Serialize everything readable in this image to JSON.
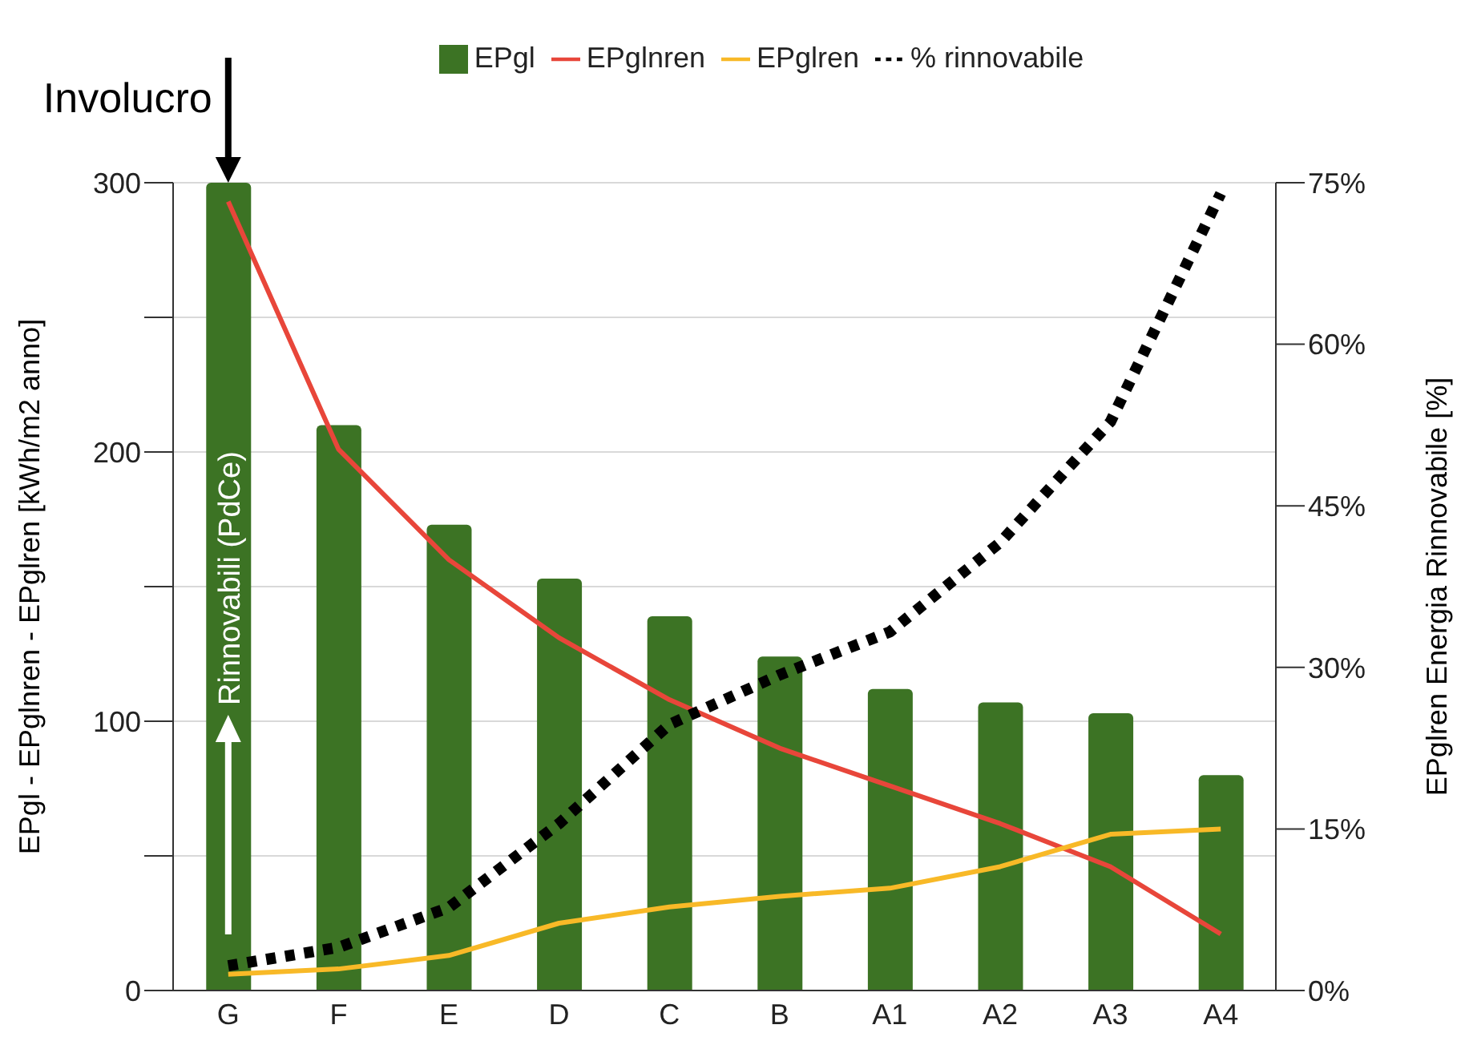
{
  "chart_data": {
    "type": "bar",
    "categories": [
      "G",
      "F",
      "E",
      "D",
      "C",
      "B",
      "A1",
      "A2",
      "A3",
      "A4"
    ],
    "series": [
      {
        "name": "EPgl",
        "color": "#3c7324",
        "values": [
          300,
          210,
          173,
          153,
          139,
          124,
          112,
          107,
          103,
          80
        ]
      },
      {
        "name": "EPglnren",
        "type": "line",
        "color": "#e8463a",
        "values": [
          293,
          201,
          160,
          131,
          108,
          90,
          76,
          62,
          46,
          21
        ]
      },
      {
        "name": "EPglren",
        "type": "line",
        "color": "#f8b927",
        "values": [
          6,
          8,
          13,
          25,
          31,
          35,
          38,
          46,
          58,
          60
        ]
      },
      {
        "name": "% rinnovabile",
        "type": "line",
        "axis": "y2",
        "color": "#000000",
        "line_style": "dotted",
        "values": [
          2.3,
          4,
          7.7,
          15.5,
          24.7,
          29.3,
          33.3,
          41.6,
          52.8,
          74
        ]
      }
    ],
    "ylabel": "EPgl - EPglnren - EPglren [kWh/m2 anno]",
    "y2label": "EPglren Energia Rinnovabile [%]",
    "ylim": [
      0,
      300
    ],
    "yticks": [
      0,
      {
        "value": 50,
        "label": null
      },
      100,
      {
        "value": 150,
        "label": null
      },
      200,
      {
        "value": 250,
        "label": null
      },
      300
    ],
    "y2lim": [
      0,
      75
    ],
    "y2ticks": [
      {
        "value": 0,
        "label": "0%"
      },
      {
        "value": 15,
        "label": "15%"
      },
      {
        "value": 30,
        "label": "30%"
      },
      {
        "value": 45,
        "label": "45%"
      },
      {
        "value": 60,
        "label": "60%"
      },
      {
        "value": 75,
        "label": "75%"
      }
    ],
    "annotations": [
      {
        "text": "Involucro",
        "x": "G",
        "y": 300
      },
      "Rinnovabili (PdCe)"
    ],
    "grid": "y",
    "legend": "top",
    "marker": "none"
  }
}
